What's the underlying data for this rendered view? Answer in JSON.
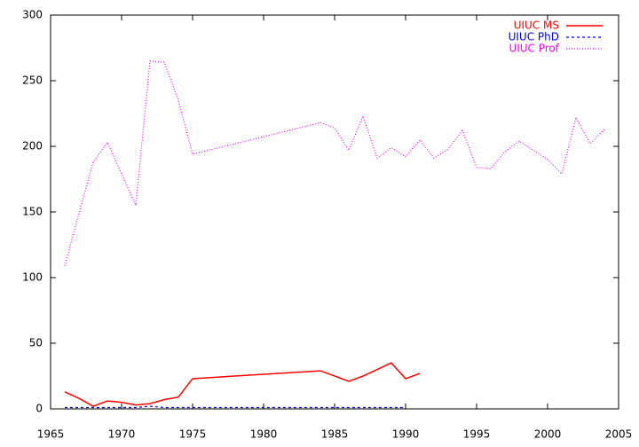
{
  "chart_data": {
    "type": "line",
    "xlim": [
      1965,
      2005
    ],
    "xticks": [
      1965,
      1970,
      1975,
      1980,
      1985,
      1990,
      1995,
      2000,
      2005
    ],
    "ylim": [
      0,
      300
    ],
    "yticks": [
      0,
      50,
      100,
      150,
      200,
      250,
      300
    ],
    "legend": "top-right",
    "series": [
      {
        "name": "UIUC MS",
        "color": "#ff0000",
        "style": "solid",
        "x": [
          1966,
          1967,
          1968,
          1969,
          1970,
          1971,
          1972,
          1973,
          1974,
          1975,
          1984,
          1986,
          1987,
          1989,
          1990,
          1991
        ],
        "values": [
          13,
          8,
          2,
          6,
          5,
          3,
          4,
          7,
          9,
          23,
          29,
          21,
          25,
          35,
          23,
          27
        ]
      },
      {
        "name": "UIUC PhD",
        "color": "#0000ff",
        "style": "dashed",
        "x": [
          1966,
          1967,
          1968,
          1969,
          1970,
          1971,
          1972,
          1973,
          1974,
          1975,
          1984,
          1985,
          1986,
          1987,
          1988,
          1989,
          1990
        ],
        "values": [
          1,
          1,
          1,
          1,
          1,
          1,
          2,
          1,
          1,
          1,
          1,
          1,
          1,
          1,
          1,
          1,
          1
        ]
      },
      {
        "name": "UIUC Prof",
        "color": "#ff00ff",
        "style": "dotted",
        "x": [
          1966,
          1967,
          1968,
          1969,
          1971,
          1972,
          1973,
          1974,
          1975,
          1984,
          1985,
          1986,
          1987,
          1988,
          1989,
          1990,
          1991,
          1992,
          1993,
          1994,
          1995,
          1996,
          1997,
          1998,
          1999,
          2000,
          2001,
          2002,
          2003,
          2004
        ],
        "values": [
          109,
          149,
          188,
          203,
          155,
          265,
          264,
          235,
          194,
          218,
          214,
          197,
          223,
          191,
          199,
          192,
          205,
          191,
          198,
          212,
          184,
          183,
          196,
          204,
          197,
          190,
          179,
          222,
          202,
          213
        ]
      }
    ]
  }
}
